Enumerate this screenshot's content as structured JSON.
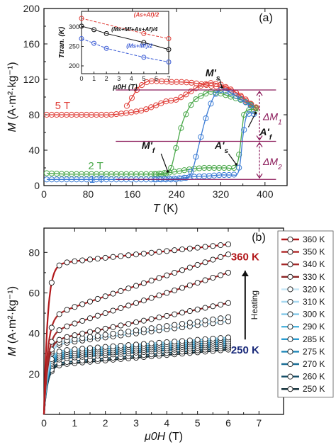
{
  "colors": {
    "red": "#e0403a",
    "green": "#4aa84a",
    "blue": "#3a7bd5",
    "magenta": "#8b1a5a",
    "black": "#111111"
  },
  "chart_data": [
    {
      "panel": "(a)",
      "type": "line",
      "xlabel_italic": "T",
      "xlabel_unit": " (K)",
      "ylabel_italic": "M",
      "ylabel_unit": " (A·m²·kg⁻¹)",
      "xlim": [
        0,
        440
      ],
      "ylim": [
        0,
        200
      ],
      "xticks": [
        0,
        80,
        160,
        240,
        320,
        400
      ],
      "yticks": [
        0,
        40,
        80,
        120,
        160,
        200
      ],
      "series": [
        {
          "name": "5 T",
          "color": "#e0403a",
          "cooling": [
            [
              5,
              80
            ],
            [
              40,
              80
            ],
            [
              80,
              80
            ],
            [
              120,
              80
            ],
            [
              150,
              82
            ],
            [
              180,
              85
            ],
            [
              200,
              90
            ],
            [
              220,
              95
            ],
            [
              240,
              97
            ],
            [
              260,
              104
            ],
            [
              280,
              112
            ],
            [
              300,
              116
            ],
            [
              320,
              114
            ],
            [
              340,
              108
            ],
            [
              360,
              100
            ],
            [
              375,
              92
            ],
            [
              385,
              86
            ]
          ],
          "heating": [
            [
              150,
              90
            ],
            [
              160,
              100
            ],
            [
              170,
              110
            ],
            [
              180,
              115
            ],
            [
              190,
              118
            ],
            [
              210,
              118
            ],
            [
              230,
              117
            ],
            [
              250,
              117
            ],
            [
              270,
              116
            ],
            [
              290,
              114
            ],
            [
              310,
              112
            ],
            [
              330,
              110
            ],
            [
              350,
              104
            ],
            [
              365,
              96
            ],
            [
              380,
              90
            ],
            [
              390,
              86
            ]
          ]
        },
        {
          "name": "2 T",
          "color": "#4aa84a",
          "cooling": [
            [
              5,
              14
            ],
            [
              40,
              13
            ],
            [
              80,
              13
            ],
            [
              120,
              13
            ],
            [
              160,
              13
            ],
            [
              200,
              13
            ],
            [
              220,
              13
            ],
            [
              230,
              20
            ],
            [
              240,
              45
            ],
            [
              250,
              70
            ],
            [
              260,
              85
            ],
            [
              270,
              95
            ],
            [
              280,
              100
            ],
            [
              290,
              103
            ],
            [
              300,
              106
            ],
            [
              320,
              104
            ],
            [
              340,
              100
            ],
            [
              360,
              96
            ],
            [
              375,
              91
            ],
            [
              385,
              87
            ]
          ],
          "heating": [
            [
              200,
              13
            ],
            [
              230,
              15
            ],
            [
              250,
              17
            ],
            [
              270,
              19
            ],
            [
              290,
              20
            ],
            [
              310,
              20
            ],
            [
              330,
              20
            ],
            [
              345,
              20
            ],
            [
              352,
              30
            ],
            [
              358,
              60
            ],
            [
              362,
              80
            ],
            [
              368,
              85
            ],
            [
              378,
              86
            ],
            [
              388,
              84
            ]
          ]
        },
        {
          "name": "1 T",
          "color": "#3a7bd5",
          "cooling": [
            [
              5,
              7
            ],
            [
              40,
              7
            ],
            [
              80,
              7
            ],
            [
              120,
              7
            ],
            [
              160,
              7
            ],
            [
              200,
              7
            ],
            [
              240,
              7
            ],
            [
              260,
              9
            ],
            [
              270,
              20
            ],
            [
              280,
              45
            ],
            [
              290,
              70
            ],
            [
              300,
              90
            ],
            [
              310,
              103
            ],
            [
              320,
              108
            ],
            [
              335,
              106
            ],
            [
              350,
              100
            ],
            [
              365,
              94
            ],
            [
              380,
              88
            ]
          ],
          "heating": [
            [
              200,
              7
            ],
            [
              240,
              8
            ],
            [
              270,
              10
            ],
            [
              300,
              11
            ],
            [
              320,
              12
            ],
            [
              340,
              12
            ],
            [
              350,
              13
            ],
            [
              355,
              25
            ],
            [
              360,
              55
            ],
            [
              365,
              75
            ],
            [
              372,
              82
            ],
            [
              385,
              80
            ]
          ]
        }
      ],
      "annotations": {
        "ms": "M's",
        "mf": "M'f",
        "as": "A's",
        "af": "A'f",
        "dm1": "ΔM1",
        "dm2": "ΔM2"
      },
      "ref_lines_M": [
        108,
        50,
        7
      ],
      "inset": {
        "xlabel": "μ0H (T)",
        "ylabel": "Ttran. (K)",
        "xlim": [
          0,
          7
        ],
        "ylim": [
          180,
          340
        ],
        "xticks": [
          0,
          1,
          2,
          3,
          4,
          5,
          6,
          7
        ],
        "yticks": [
          200,
          250,
          300
        ],
        "series": [
          {
            "name": "(As+Af)/2",
            "color": "#e0403a",
            "points": [
              [
                0,
                322
              ],
              [
                5,
                283
              ],
              [
                7,
                270
              ]
            ]
          },
          {
            "name": "(Ms+Mf+As+Af)/4",
            "color": "#111111",
            "points": [
              [
                0,
                302
              ],
              [
                1,
                293
              ],
              [
                2,
                283
              ],
              [
                5,
                260
              ],
              [
                7,
                242
              ]
            ]
          },
          {
            "name": "(Ms+Mf)/2",
            "color": "#3a5bd5",
            "points": [
              [
                0,
                270
              ],
              [
                1,
                258
              ],
              [
                2,
                245
              ],
              [
                5,
                222
              ],
              [
                7,
                210
              ]
            ]
          }
        ]
      }
    },
    {
      "panel": "(b)",
      "type": "line",
      "xlabel_italic": "μ0H",
      "xlabel_unit": " (T)",
      "ylabel_italic": "M",
      "ylabel_unit": " (A·m²·kg⁻¹)",
      "xlim": [
        0,
        7.8
      ],
      "ylim": [
        0,
        92
      ],
      "xticks": [
        0,
        1,
        2,
        3,
        4,
        5,
        6,
        7
      ],
      "yticks": [
        20,
        40,
        60,
        80
      ],
      "series": [
        {
          "name": "360 K",
          "color": "#b2181b",
          "sat": 74,
          "end": 84
        },
        {
          "name": "350 K",
          "color": "#b02828",
          "sat": 48,
          "end": 79
        },
        {
          "name": "340 K",
          "color": "#a52a2a",
          "sat": 40,
          "end": 70
        },
        {
          "name": "330 K",
          "color": "#8b2323",
          "sat": 36,
          "end": 55
        },
        {
          "name": "320 K",
          "color": "#c6e6f6",
          "sat": 35,
          "end": 48
        },
        {
          "name": "310 K",
          "color": "#a7d8f0",
          "sat": 34,
          "end": 46
        },
        {
          "name": "300 K",
          "color": "#82c8e8",
          "sat": 31,
          "end": 38
        },
        {
          "name": "290 K",
          "color": "#4fb3dc",
          "sat": 30,
          "end": 37
        },
        {
          "name": "285 K",
          "color": "#2a9bd0",
          "sat": 29,
          "end": 36
        },
        {
          "name": "275 K",
          "color": "#1e86b8",
          "sat": 28,
          "end": 35
        },
        {
          "name": "270 K",
          "color": "#1a6e96",
          "sat": 27,
          "end": 34
        },
        {
          "name": "260 K",
          "color": "#164f68",
          "sat": 25,
          "end": 33
        },
        {
          "name": "250 K",
          "color": "#0d2a35",
          "sat": 24,
          "end": 32
        }
      ],
      "label_top": "360 K",
      "label_bottom": "250 K",
      "heating": "Heating"
    }
  ]
}
